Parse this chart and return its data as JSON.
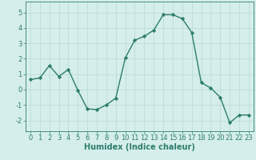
{
  "x": [
    0,
    1,
    2,
    3,
    4,
    5,
    6,
    7,
    8,
    9,
    10,
    11,
    12,
    13,
    14,
    15,
    16,
    17,
    18,
    19,
    20,
    21,
    22,
    23
  ],
  "y": [
    0.65,
    0.75,
    1.55,
    0.85,
    1.3,
    -0.05,
    -1.25,
    -1.3,
    -1.0,
    -0.55,
    2.05,
    3.2,
    3.45,
    3.85,
    4.85,
    4.85,
    4.6,
    3.7,
    0.45,
    0.1,
    -0.5,
    -2.15,
    -1.65,
    -1.65
  ],
  "line_color": "#2d7d6d",
  "marker": "D",
  "markersize": 2.2,
  "linewidth": 1.0,
  "xlabel": "Humidex (Indice chaleur)",
  "xlim": [
    -0.5,
    23.5
  ],
  "ylim": [
    -2.7,
    5.7
  ],
  "yticks": [
    -2,
    -1,
    0,
    1,
    2,
    3,
    4,
    5
  ],
  "xticks": [
    0,
    1,
    2,
    3,
    4,
    5,
    6,
    7,
    8,
    9,
    10,
    11,
    12,
    13,
    14,
    15,
    16,
    17,
    18,
    19,
    20,
    21,
    22,
    23
  ],
  "bg_color": "#d5eeeb",
  "grid_color": "#b8d8d4",
  "tick_color": "#2d7d6d",
  "label_color": "#2d7d6d",
  "xlabel_fontsize": 7,
  "tick_fontsize": 6
}
